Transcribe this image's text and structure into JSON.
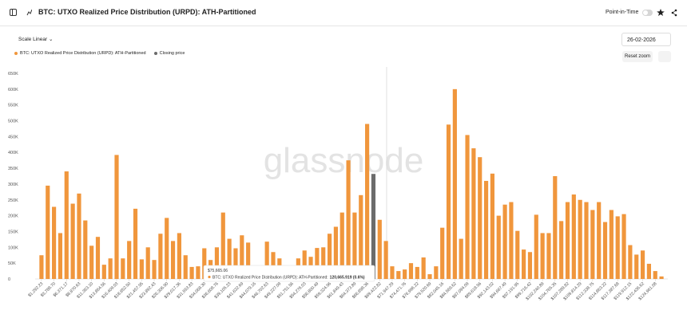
{
  "header": {
    "title": "BTC: UTXO Realized Price Distribution (URPD): ATH-Partitioned",
    "toggle_label": "Point-in-Time"
  },
  "controls": {
    "scale": "Scale Linear",
    "date": "26-02-2026",
    "reset": "Reset zoom"
  },
  "watermark": "glassnode",
  "tooltip": {
    "price": "$75,665.06",
    "label": "BTC: UTXO Realized Price Distribution (URPD): ATH-Partitioned:",
    "value": "120,665.919 (0.6%)"
  },
  "chart_data": {
    "type": "bar",
    "categories": [
      "$1,292.23",
      null,
      "$3,788.70",
      null,
      "$6,371.17",
      null,
      "$8,870.63",
      null,
      "$11,363.10",
      null,
      "$13,864.56",
      null,
      "$16,409.03",
      null,
      "$18,852.50",
      null,
      "$21,457.95",
      null,
      "$23,892.43",
      null,
      "$26,306.90",
      null,
      "$29,017.36",
      null,
      "$31,553.83",
      null,
      "$34,068.30",
      null,
      "$36,608.76",
      null,
      "$39,105.23",
      null,
      "$41,632.69",
      null,
      "$44,079.16",
      null,
      "$46,702.63",
      null,
      "$49,227.09",
      null,
      "$51,751.56",
      null,
      "$54,276.03",
      null,
      "$56,800.49",
      null,
      "$59,324.96",
      null,
      "$61,849.43",
      null,
      "$64,373.89",
      null,
      "$66,898.36",
      null,
      "$69,422.82",
      null,
      "$71,947.29",
      null,
      "$74,471.76",
      null,
      "$76,996.22",
      null,
      "$79,520.69",
      null,
      "$82,045.16",
      null,
      "$84,569.62",
      null,
      "$87,094.09",
      null,
      "$89,618.56",
      null,
      "$92,143.02",
      null,
      "$94,667.49",
      null,
      "$97,191.95",
      null,
      "$99,716.42",
      null,
      "$102,240.89",
      null,
      "$104,765.35",
      null,
      "$107,289.82",
      null,
      "$109,814.29",
      null,
      "$112,338.75",
      null,
      "$114,863.22",
      null,
      "$117,387.68",
      null,
      "$119,912.15",
      null,
      "$122,436.62",
      null,
      "$124,961.08",
      null
    ],
    "series": [
      {
        "name": "BTC: UTXO Realized Price Distribution (URPD): ATH-Partitioned",
        "color": "#f0963c",
        "values": [
          75000,
          295000,
          228000,
          145000,
          340000,
          238000,
          270000,
          185000,
          105000,
          133000,
          45000,
          65000,
          392000,
          65000,
          120000,
          222000,
          62000,
          100000,
          60000,
          143000,
          193000,
          120000,
          145000,
          75000,
          38000,
          40000,
          97000,
          60000,
          100000,
          210000,
          127000,
          97000,
          138000,
          115000,
          20000,
          10000,
          118000,
          85000,
          65000,
          10000,
          30000,
          65000,
          90000,
          70000,
          98000,
          100000,
          143000,
          165000,
          210000,
          375000,
          210000,
          265000,
          490000,
          null,
          187000,
          120000,
          40000,
          25000,
          30000,
          50000,
          38000,
          68000,
          15000,
          40000,
          162000,
          488000,
          600000,
          127000,
          455000,
          413000,
          385000,
          310000,
          333000,
          200000,
          235000,
          243000,
          152000,
          93000,
          85000,
          203000,
          145000,
          145000,
          325000,
          183000,
          243000,
          267000,
          250000,
          243000,
          218000,
          243000,
          180000,
          218000,
          198000,
          205000,
          107000,
          77000,
          90000,
          48000,
          25000,
          8000
        ]
      },
      {
        "name": "Closing price",
        "color": "#6b6b6b",
        "values": [
          null,
          null,
          null,
          null,
          null,
          null,
          null,
          null,
          null,
          null,
          null,
          null,
          null,
          null,
          null,
          null,
          null,
          null,
          null,
          null,
          null,
          null,
          null,
          null,
          null,
          null,
          null,
          null,
          null,
          null,
          null,
          null,
          null,
          null,
          null,
          null,
          null,
          null,
          null,
          null,
          null,
          null,
          null,
          null,
          null,
          null,
          null,
          null,
          null,
          null,
          null,
          null,
          null,
          332000,
          null,
          null,
          null,
          null,
          null,
          null,
          null,
          null,
          null,
          null,
          null,
          null,
          null,
          null,
          null,
          null,
          null,
          null,
          null,
          null,
          null,
          null,
          null,
          null,
          null,
          null,
          null,
          null,
          null,
          null,
          null,
          null,
          null,
          null,
          null,
          null,
          null,
          null,
          null,
          null,
          null,
          null,
          null,
          null,
          null,
          null
        ]
      }
    ],
    "ylim": [
      0,
      650000
    ],
    "yticks": [
      0,
      {
        "value": 50000,
        "label": "50K"
      },
      {
        "value": 100000,
        "label": "100K"
      },
      {
        "value": 150000,
        "label": "150K"
      },
      {
        "value": 200000,
        "label": "200K"
      },
      {
        "value": 250000,
        "label": "250K"
      },
      {
        "value": 300000,
        "label": "300K"
      },
      {
        "value": 350000,
        "label": "350K"
      },
      {
        "value": 400000,
        "label": "400K"
      },
      {
        "value": 450000,
        "label": "450K"
      },
      {
        "value": 500000,
        "label": "500K"
      },
      {
        "value": 550000,
        "label": "550K"
      },
      {
        "value": 600000,
        "label": "600K"
      },
      {
        "value": 650000,
        "label": "650K"
      }
    ],
    "grid": false
  }
}
